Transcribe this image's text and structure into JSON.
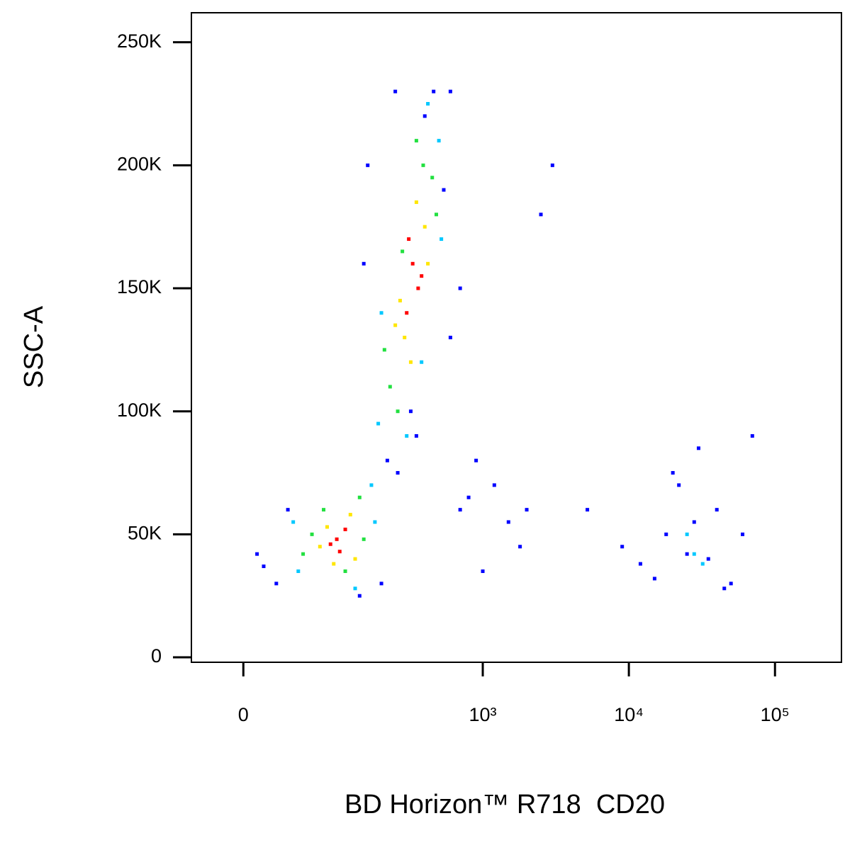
{
  "chart_data": {
    "type": "scatter",
    "x_label": "BD Horizon™ R718  CD20",
    "y_label": "SSC-A",
    "xscale": "biexponential",
    "xlim": [
      -42,
      285000
    ],
    "ylim": [
      -2000,
      262000
    ],
    "xticks": [
      {
        "value": 0,
        "label": "0"
      },
      {
        "value": 1000,
        "label": "10³"
      },
      {
        "value": 10000,
        "label": "10⁴"
      },
      {
        "value": 100000,
        "label": "10⁵"
      }
    ],
    "yticks": [
      {
        "value": 0,
        "label": "0"
      },
      {
        "value": 50000,
        "label": "50K"
      },
      {
        "value": 100000,
        "label": "100K"
      },
      {
        "value": 150000,
        "label": "150K"
      },
      {
        "value": 200000,
        "label": "200K"
      },
      {
        "value": 250000,
        "label": "250K"
      }
    ],
    "series": [
      {
        "color": "#0000ff",
        "x": [
          150,
          600,
          540,
          460,
          700,
          160,
          250,
          320,
          220,
          1200,
          800,
          2000,
          1500,
          900,
          600,
          3000,
          5200,
          25,
          15,
          35,
          10,
          200,
          260,
          9000,
          12000,
          18000,
          22000,
          30000,
          40000,
          50000,
          60000,
          35000,
          20000,
          15000,
          45000,
          70000,
          28000,
          25000,
          1000,
          1800,
          2500,
          400,
          700,
          350,
          140
        ],
        "y": [
          160000,
          230000,
          190000,
          230000,
          150000,
          200000,
          230000,
          100000,
          80000,
          70000,
          65000,
          60000,
          55000,
          80000,
          130000,
          200000,
          60000,
          30000,
          37000,
          60000,
          42000,
          30000,
          75000,
          45000,
          38000,
          50000,
          70000,
          85000,
          60000,
          30000,
          50000,
          40000,
          75000,
          32000,
          28000,
          90000,
          55000,
          42000,
          35000,
          45000,
          180000,
          220000,
          60000,
          90000,
          25000
        ]
      },
      {
        "color": "#00c8ff",
        "x": [
          200,
          500,
          420,
          190,
          300,
          520,
          380,
          170,
          45,
          180,
          130,
          40,
          28000,
          25000,
          32000
        ],
        "y": [
          140000,
          210000,
          225000,
          95000,
          90000,
          170000,
          120000,
          70000,
          35000,
          55000,
          28000,
          55000,
          42000,
          50000,
          38000
        ]
      },
      {
        "color": "#22e040",
        "x": [
          230,
          450,
          390,
          280,
          480,
          210,
          260,
          350,
          140,
          60,
          150,
          110,
          75,
          50
        ],
        "y": [
          110000,
          195000,
          200000,
          165000,
          180000,
          125000,
          100000,
          210000,
          65000,
          50000,
          48000,
          35000,
          60000,
          42000
        ]
      },
      {
        "color": "#ffe600",
        "x": [
          290,
          400,
          350,
          270,
          420,
          320,
          250,
          120,
          80,
          130,
          90,
          70
        ],
        "y": [
          130000,
          175000,
          185000,
          145000,
          160000,
          120000,
          135000,
          58000,
          53000,
          40000,
          38000,
          45000
        ]
      },
      {
        "color": "#ff0000",
        "x": [
          330,
          360,
          300,
          310,
          380,
          95,
          110,
          100,
          85
        ],
        "y": [
          160000,
          150000,
          140000,
          170000,
          155000,
          48000,
          52000,
          43000,
          46000
        ]
      }
    ]
  }
}
